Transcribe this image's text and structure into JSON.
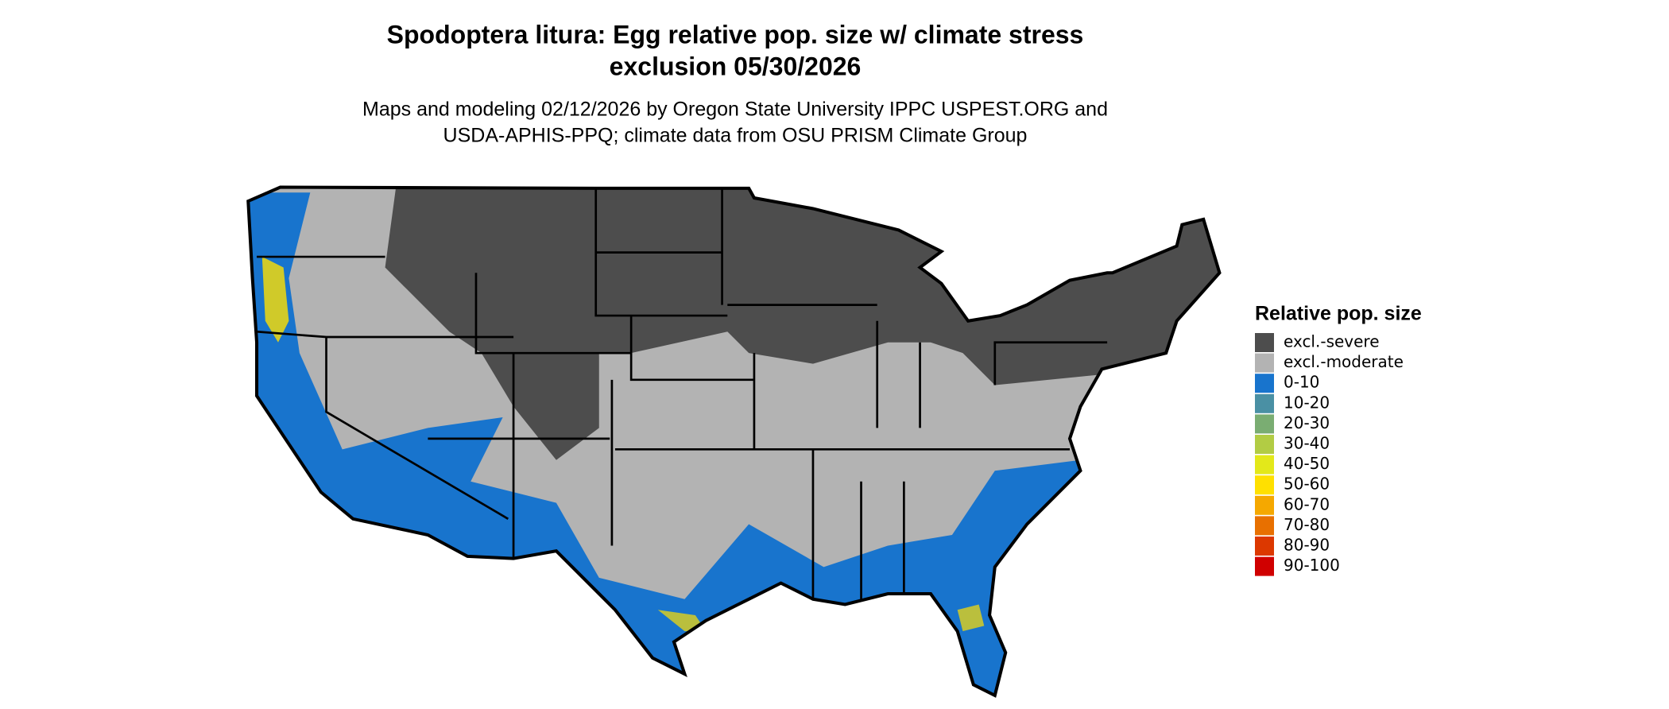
{
  "header": {
    "title": [
      "Spodoptera litura: Egg relative pop. size w/ climate stress",
      "exclusion 05/30/2026"
    ],
    "subtitle": [
      "Maps and modeling 02/12/2026 by Oregon State University IPPC USPEST.ORG and",
      "USDA-APHIS-PPQ; climate data from OSU PRISM Climate Group"
    ]
  },
  "legend": {
    "title": "Relative pop. size",
    "items": [
      {
        "label": "excl.-severe",
        "color": "#4d4d4d"
      },
      {
        "label": "excl.-moderate",
        "color": "#b3b3b3"
      },
      {
        "label": "0-10",
        "color": "#1874cd"
      },
      {
        "label": "10-20",
        "color": "#4a90a4"
      },
      {
        "label": "20-30",
        "color": "#7aad72"
      },
      {
        "label": "30-40",
        "color": "#b2cc44"
      },
      {
        "label": "40-50",
        "color": "#e3e81a"
      },
      {
        "label": "50-60",
        "color": "#ffe000"
      },
      {
        "label": "60-70",
        "color": "#f5a800"
      },
      {
        "label": "70-80",
        "color": "#e87000"
      },
      {
        "label": "80-90",
        "color": "#dc3800"
      },
      {
        "label": "90-100",
        "color": "#d00000"
      }
    ]
  }
}
